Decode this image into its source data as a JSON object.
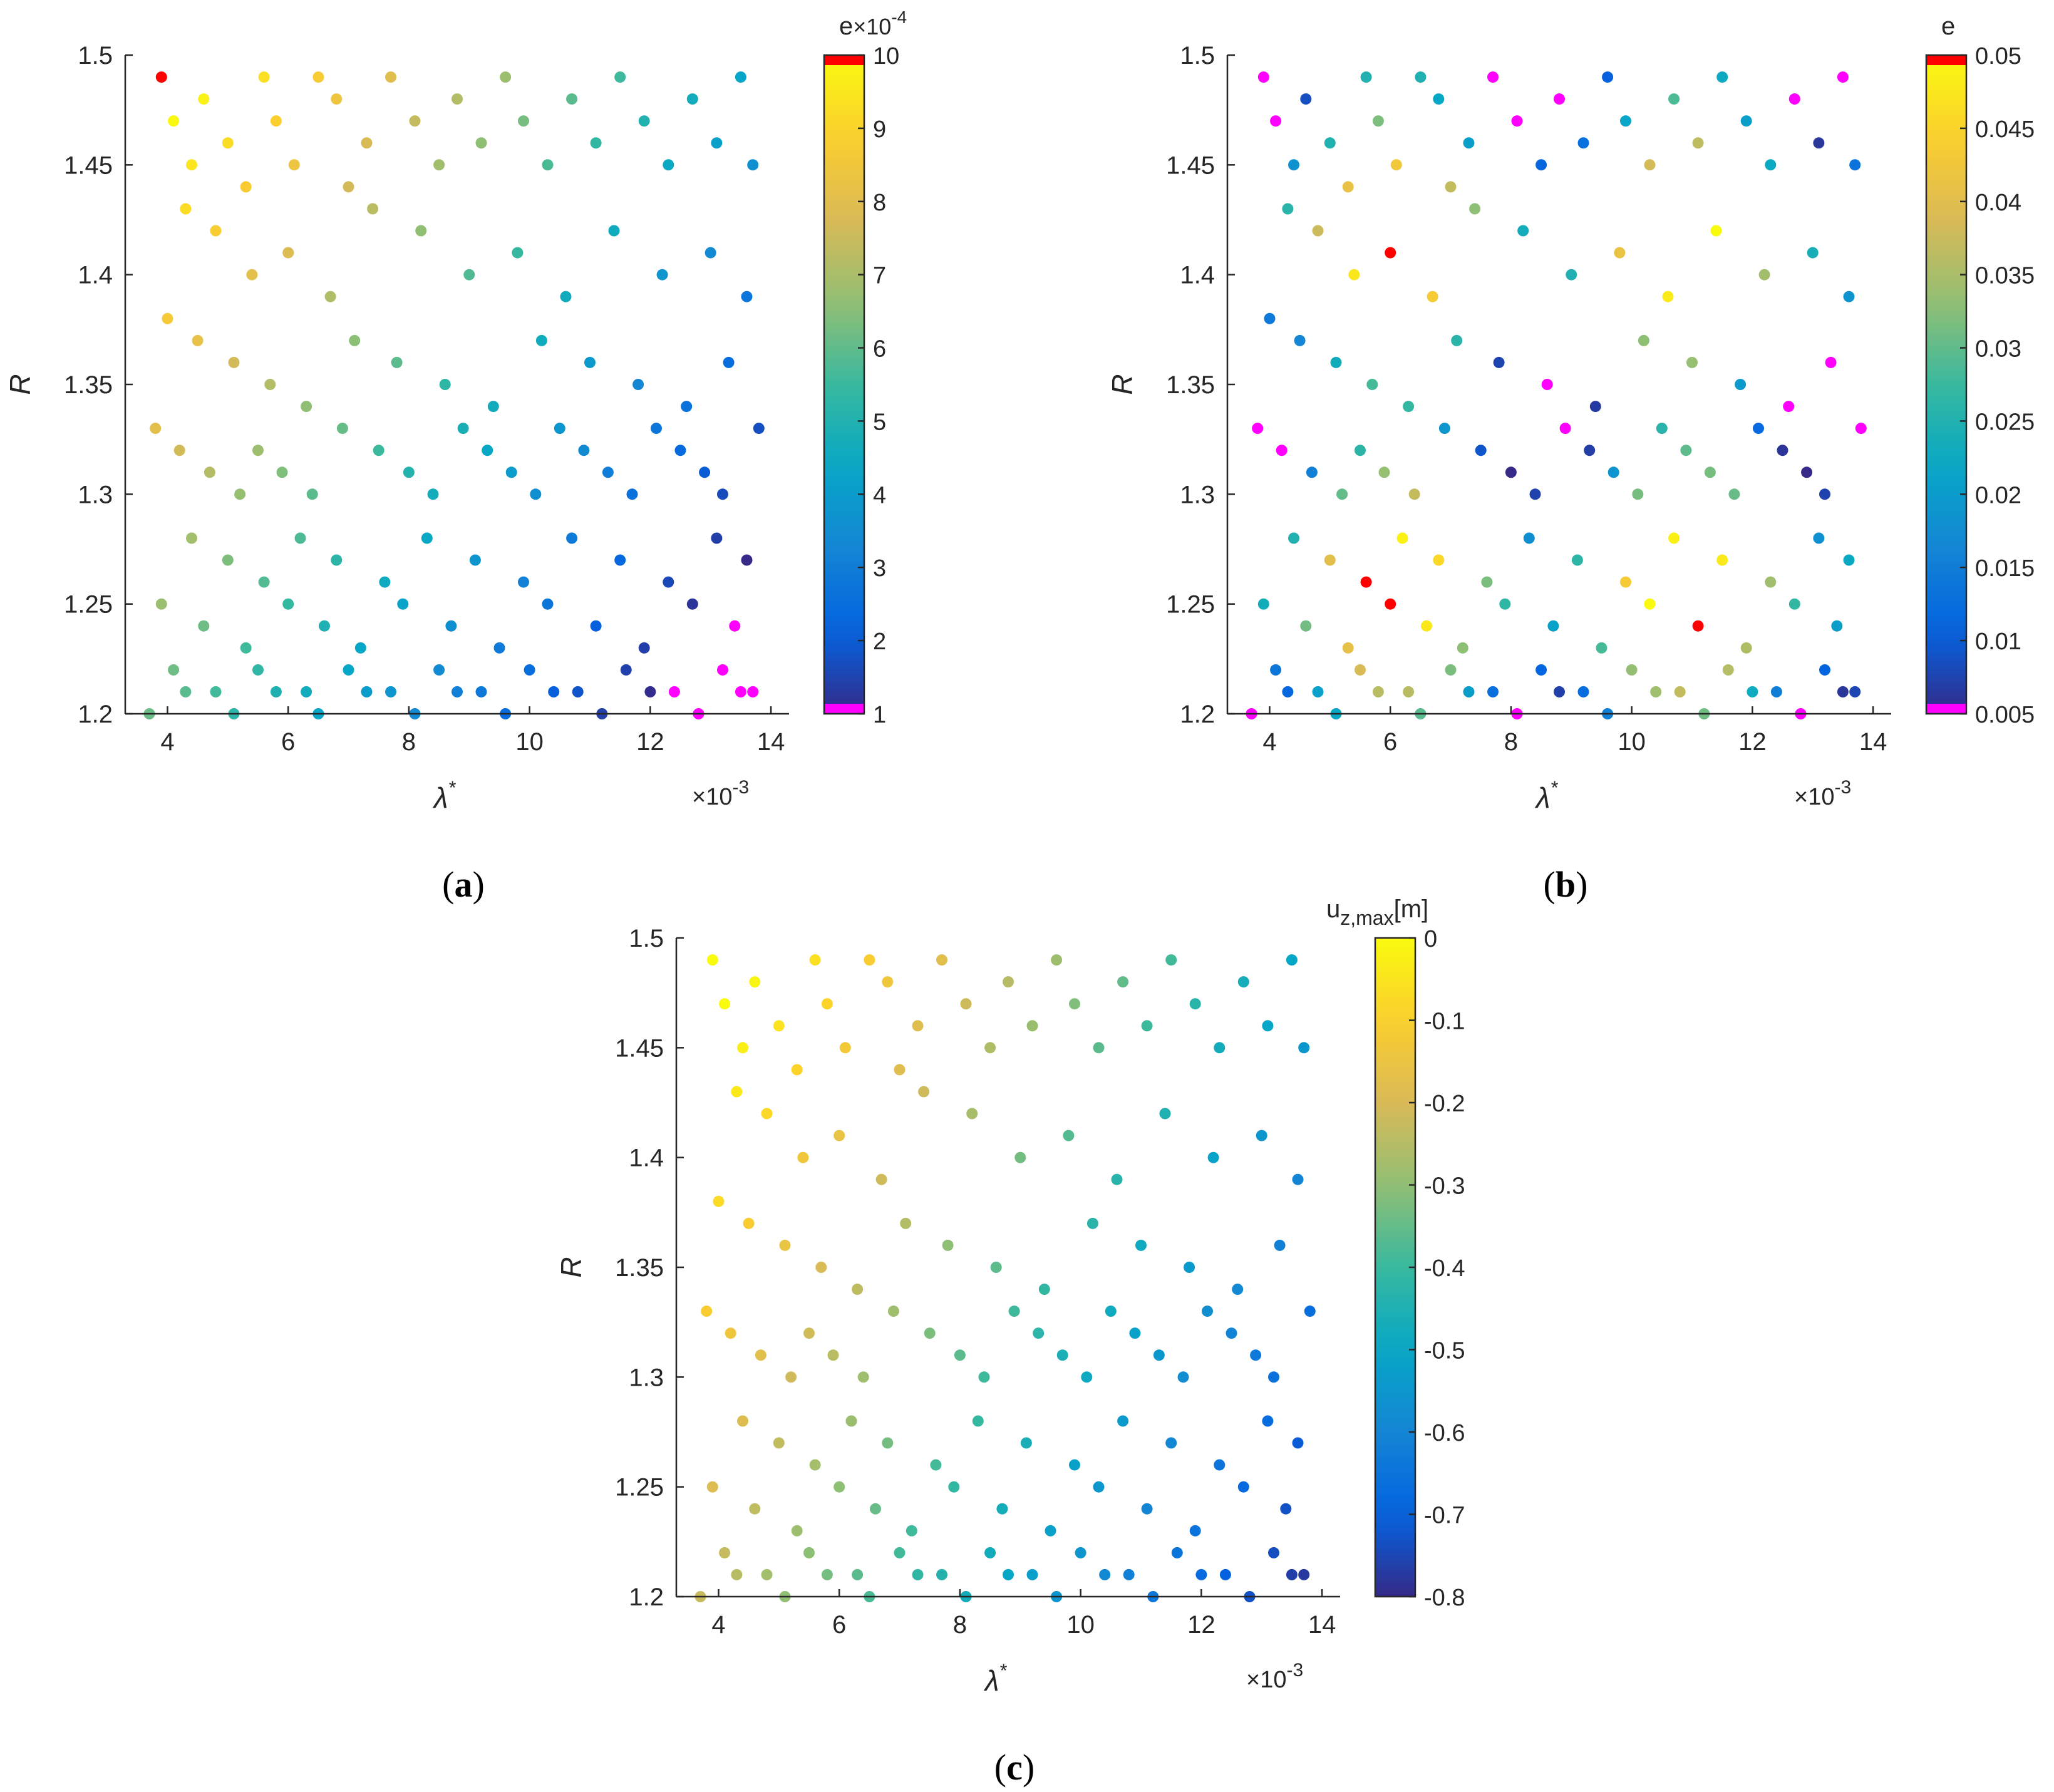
{
  "figures": [
    {
      "id": "a",
      "label": "a",
      "xlabel": "λ",
      "xlabel_sup": "*",
      "ylabel": "R",
      "x_exponent_label": "×10",
      "x_exponent_power": "-3",
      "xticks": [
        "4",
        "6",
        "8",
        "10",
        "12",
        "14"
      ],
      "yticks": [
        "1.5",
        "1.45",
        "1.4",
        "1.35",
        "1.3",
        "1.25",
        "1.2"
      ],
      "colorbar": {
        "title": "e",
        "title_exponent": "×10",
        "title_exponent_power": "-4",
        "ticks": [
          "10",
          "9",
          "8",
          "7",
          "6",
          "5",
          "4",
          "3",
          "2",
          "1"
        ],
        "range": [
          1,
          10
        ],
        "over_color": "#ff0000",
        "under_color": "#ff00ff"
      }
    },
    {
      "id": "b",
      "label": "b",
      "xlabel": "λ",
      "xlabel_sup": "*",
      "ylabel": "R",
      "x_exponent_label": "×10",
      "x_exponent_power": "-3",
      "xticks": [
        "4",
        "6",
        "8",
        "10",
        "12",
        "14"
      ],
      "yticks": [
        "1.5",
        "1.45",
        "1.4",
        "1.35",
        "1.3",
        "1.25",
        "1.2"
      ],
      "colorbar": {
        "title": "e",
        "ticks": [
          "0.05",
          "0.045",
          "0.04",
          "0.035",
          "0.03",
          "0.025",
          "0.02",
          "0.015",
          "0.01",
          "0.005"
        ],
        "range": [
          0.005,
          0.05
        ],
        "over_color": "#ff0000",
        "under_color": "#ff00ff"
      }
    },
    {
      "id": "c",
      "label": "c",
      "xlabel": "λ",
      "xlabel_sup": "*",
      "ylabel": "R",
      "x_exponent_label": "×10",
      "x_exponent_power": "-3",
      "xticks": [
        "4",
        "6",
        "8",
        "10",
        "12",
        "14"
      ],
      "yticks": [
        "1.5",
        "1.45",
        "1.4",
        "1.35",
        "1.3",
        "1.25",
        "1.2"
      ],
      "colorbar": {
        "title": "u",
        "title_sub": "z,max",
        "title_unit": "[m]",
        "ticks": [
          "0",
          "-0.1",
          "-0.2",
          "-0.3",
          "-0.4",
          "-0.5",
          "-0.6",
          "-0.7",
          "-0.8"
        ],
        "range": [
          -0.8,
          0
        ]
      }
    }
  ],
  "colors": {
    "parula": [
      "#352a87",
      "#0363e1",
      "#1485d4",
      "#06a7c6",
      "#38b99e",
      "#92bf73",
      "#d9ba56",
      "#fcce2e",
      "#f9fb0e"
    ]
  },
  "chart_data": {
    "type": "scatter",
    "title": "",
    "xlabel": "λ* (×10^-3)",
    "ylabel": "R",
    "xlim": [
      3.3,
      14.3
    ],
    "ylim": [
      1.2,
      1.5
    ],
    "panels": [
      "(a) e ×10^-4",
      "(b) e",
      "(c) u_z,max [m]"
    ],
    "x": [
      3.9,
      4.1,
      4.4,
      4.6,
      5.0,
      5.3,
      5.6,
      5.8,
      6.1,
      6.5,
      6.8,
      7.0,
      7.3,
      7.7,
      8.1,
      8.5,
      8.8,
      9.2,
      9.6,
      9.9,
      10.3,
      10.7,
      11.1,
      11.5,
      11.9,
      12.3,
      12.7,
      13.1,
      13.5,
      13.7,
      4.3,
      4.8,
      5.4,
      6.0,
      6.7,
      7.4,
      8.2,
      9.0,
      9.8,
      10.6,
      11.4,
      12.2,
      13.0,
      13.6,
      4.0,
      4.5,
      5.1,
      5.7,
      6.3,
      7.1,
      7.8,
      8.6,
      9.4,
      10.2,
      11.0,
      11.8,
      12.6,
      13.3,
      3.8,
      4.2,
      4.7,
      5.2,
      5.5,
      5.9,
      6.4,
      6.9,
      7.5,
      8.0,
      8.4,
      8.9,
      9.3,
      9.7,
      10.1,
      10.5,
      10.9,
      11.3,
      11.7,
      12.1,
      12.5,
      12.9,
      13.2,
      13.8,
      4.4,
      5.0,
      5.6,
      6.2,
      6.8,
      7.6,
      8.3,
      9.1,
      9.9,
      10.7,
      11.5,
      12.3,
      13.1,
      13.6,
      3.9,
      4.6,
      5.3,
      6.0,
      6.6,
      7.2,
      7.9,
      8.7,
      9.5,
      10.3,
      11.1,
      11.9,
      12.7,
      13.4,
      4.1,
      4.8,
      5.5,
      6.3,
      7.0,
      7.7,
      8.5,
      9.2,
      10.0,
      10.8,
      11.6,
      12.4,
      13.2,
      13.7,
      3.7,
      4.3,
      5.1,
      5.8,
      6.5,
      7.3,
      8.1,
      8.8,
      9.6,
      10.4,
      11.2,
      12.0,
      12.8,
      13.5
    ],
    "y": [
      1.49,
      1.47,
      1.45,
      1.48,
      1.46,
      1.44,
      1.49,
      1.47,
      1.45,
      1.49,
      1.48,
      1.44,
      1.46,
      1.49,
      1.47,
      1.45,
      1.48,
      1.46,
      1.49,
      1.47,
      1.45,
      1.48,
      1.46,
      1.49,
      1.47,
      1.45,
      1.48,
      1.46,
      1.49,
      1.45,
      1.43,
      1.42,
      1.4,
      1.41,
      1.39,
      1.43,
      1.42,
      1.4,
      1.41,
      1.39,
      1.42,
      1.4,
      1.41,
      1.39,
      1.38,
      1.37,
      1.36,
      1.35,
      1.34,
      1.37,
      1.36,
      1.35,
      1.34,
      1.37,
      1.36,
      1.35,
      1.34,
      1.36,
      1.33,
      1.32,
      1.31,
      1.3,
      1.32,
      1.31,
      1.3,
      1.33,
      1.32,
      1.31,
      1.3,
      1.33,
      1.32,
      1.31,
      1.3,
      1.33,
      1.32,
      1.31,
      1.3,
      1.33,
      1.32,
      1.31,
      1.3,
      1.33,
      1.28,
      1.27,
      1.26,
      1.28,
      1.27,
      1.26,
      1.28,
      1.27,
      1.26,
      1.28,
      1.27,
      1.26,
      1.28,
      1.27,
      1.25,
      1.24,
      1.23,
      1.25,
      1.24,
      1.23,
      1.25,
      1.24,
      1.23,
      1.25,
      1.24,
      1.23,
      1.25,
      1.24,
      1.22,
      1.21,
      1.22,
      1.21,
      1.22,
      1.21,
      1.22,
      1.21,
      1.22,
      1.21,
      1.22,
      1.21,
      1.22,
      1.21,
      1.2,
      1.21,
      1.2,
      1.21,
      1.2,
      1.21,
      1.2,
      1.21,
      1.2,
      1.21,
      1.2,
      1.21,
      1.2,
      1.21
    ]
  }
}
